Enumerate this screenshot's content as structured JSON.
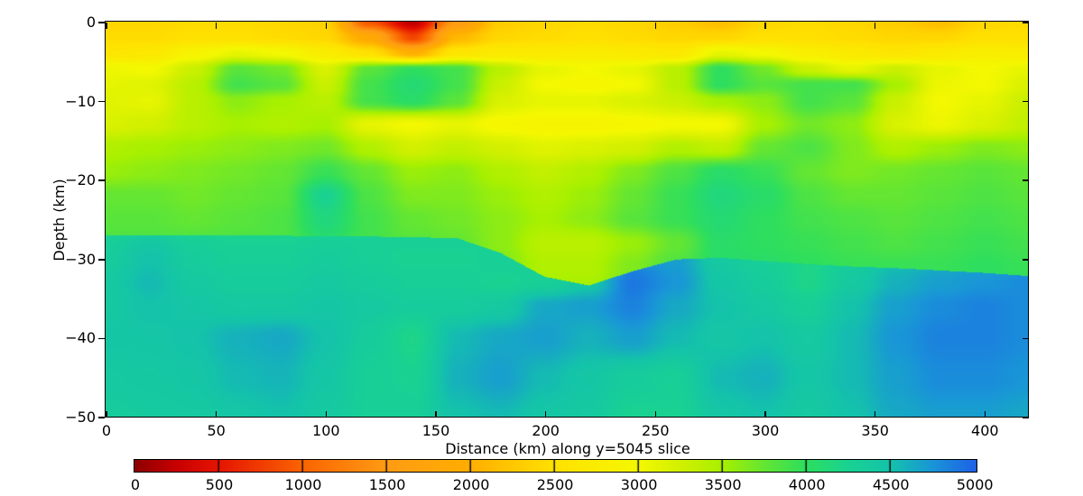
{
  "chart_data": {
    "type": "heatmap",
    "title": "",
    "xlabel": "Distance (km) along y=5045 slice",
    "ylabel": "Depth (km)",
    "x_range": [
      0,
      420
    ],
    "y_range": [
      -50,
      0
    ],
    "x_ticks": [
      0,
      50,
      100,
      150,
      200,
      250,
      300,
      350,
      400
    ],
    "y_ticks": [
      0,
      -10,
      -20,
      -30,
      -40,
      -50
    ],
    "grid_lines": "off",
    "colorbar": {
      "orientation": "horizontal",
      "min": 0,
      "max": 5015,
      "ticks": [
        0,
        500,
        1000,
        1500,
        2000,
        2500,
        3000,
        3500,
        4000,
        4500,
        5000
      ],
      "inner_tick_values": [
        500,
        1000,
        1500,
        2000,
        2500,
        3000,
        3500,
        4000,
        4500
      ],
      "colormap_stops": [
        [
          0,
          "#8c0000"
        ],
        [
          250,
          "#c80000"
        ],
        [
          500,
          "#e61400"
        ],
        [
          1000,
          "#fa6400"
        ],
        [
          1500,
          "#ff9b14"
        ],
        [
          2000,
          "#ffae00"
        ],
        [
          2500,
          "#ffe100"
        ],
        [
          3000,
          "#f4f800"
        ],
        [
          3250,
          "#d2f000"
        ],
        [
          3500,
          "#a8f000"
        ],
        [
          3750,
          "#64e632"
        ],
        [
          4000,
          "#2dde5f"
        ],
        [
          4250,
          "#19d292"
        ],
        [
          4500,
          "#14c3aa"
        ],
        [
          4750,
          "#1996d7"
        ],
        [
          5000,
          "#1e64e6"
        ],
        [
          5015,
          "#1e5ce6"
        ]
      ]
    },
    "field": {
      "x_km": [
        0,
        20,
        40,
        60,
        80,
        100,
        120,
        140,
        160,
        180,
        200,
        220,
        240,
        260,
        280,
        300,
        320,
        340,
        360,
        380,
        400,
        420
      ],
      "boundary_depth_km": [
        27.0,
        27.0,
        27.05,
        27.1,
        27.1,
        27.15,
        27.2,
        27.3,
        27.4,
        29.3,
        32.3,
        33.4,
        31.6,
        30.1,
        29.9,
        30.3,
        30.7,
        31.0,
        31.2,
        31.5,
        31.8,
        32.2
      ],
      "upper_depths_km": [
        0,
        2,
        4,
        6,
        8,
        10,
        13,
        16,
        19,
        22,
        25,
        28,
        31,
        34
      ],
      "upper_values": [
        [
          2400,
          2400,
          2450,
          2450,
          2400,
          2350,
          900,
          200,
          1500,
          2300,
          2400,
          2450,
          2400,
          2300,
          2150,
          2400,
          2450,
          2400,
          2300,
          2150,
          2400,
          2450
        ],
        [
          2450,
          2450,
          2500,
          2500,
          2450,
          2400,
          1900,
          800,
          2100,
          2400,
          2450,
          2500,
          2450,
          2400,
          2400,
          2500,
          2500,
          2450,
          2400,
          2400,
          2500,
          2500
        ],
        [
          2600,
          2650,
          2900,
          3100,
          3000,
          2750,
          2500,
          2000,
          2600,
          2700,
          2700,
          2750,
          2700,
          2650,
          3100,
          3000,
          2800,
          2700,
          2600,
          2700,
          2800,
          2750
        ],
        [
          3050,
          3000,
          3300,
          3800,
          3700,
          3200,
          3800,
          4000,
          3900,
          3400,
          3100,
          3000,
          3100,
          3400,
          4000,
          3700,
          3300,
          3100,
          3300,
          3100,
          3000,
          3100
        ],
        [
          3100,
          3150,
          3400,
          3900,
          3800,
          3300,
          3900,
          4100,
          3900,
          3300,
          3000,
          2950,
          3000,
          3400,
          4000,
          3800,
          3900,
          3900,
          3500,
          3050,
          3000,
          3200
        ],
        [
          3150,
          3100,
          3400,
          3600,
          3500,
          3400,
          3900,
          4050,
          3800,
          3200,
          3100,
          3100,
          3200,
          3300,
          3500,
          3600,
          3900,
          3800,
          3300,
          3000,
          3100,
          3300
        ],
        [
          3200,
          3250,
          3400,
          3500,
          3450,
          3500,
          3100,
          3000,
          3100,
          2950,
          2900,
          2900,
          2950,
          3000,
          3000,
          3500,
          3700,
          3600,
          3200,
          3050,
          3200,
          3350
        ],
        [
          3450,
          3500,
          3550,
          3600,
          3650,
          3700,
          3450,
          3250,
          3350,
          3250,
          3150,
          3200,
          3250,
          3450,
          3350,
          3750,
          3850,
          3650,
          3450,
          3550,
          3650,
          3600
        ],
        [
          3550,
          3600,
          3650,
          3700,
          3750,
          3950,
          3750,
          3550,
          3600,
          3450,
          3350,
          3450,
          3650,
          3850,
          4050,
          3950,
          3750,
          3650,
          3700,
          3750,
          3800,
          3750
        ],
        [
          3750,
          3750,
          3700,
          3750,
          3800,
          4250,
          3850,
          3650,
          3650,
          3550,
          3450,
          3550,
          3750,
          3950,
          4150,
          4050,
          3850,
          3750,
          3750,
          3800,
          3850,
          3800
        ],
        [
          3800,
          3800,
          3750,
          3800,
          3850,
          4150,
          3900,
          3750,
          3700,
          3600,
          3500,
          3600,
          3800,
          3950,
          4100,
          4000,
          3900,
          3850,
          3800,
          3850,
          3900,
          3850
        ],
        [
          3850,
          3850,
          3850,
          3850,
          3850,
          4050,
          3900,
          3800,
          3750,
          3600,
          3400,
          3400,
          3550,
          3750,
          4050,
          4000,
          3950,
          3900,
          3850,
          3900,
          3950,
          3900
        ],
        [
          3950,
          3950,
          3950,
          3950,
          3950,
          4050,
          3950,
          3850,
          3800,
          3650,
          3450,
          3450,
          3650,
          3850,
          4050,
          4050,
          4000,
          3950,
          3950,
          3950,
          4000,
          3950
        ],
        [
          4000,
          4000,
          4000,
          4000,
          4000,
          4100,
          4000,
          3900,
          3850,
          3700,
          3500,
          3500,
          3700,
          3900,
          4100,
          4100,
          4050,
          4000,
          4000,
          4000,
          4050,
          4000
        ]
      ],
      "lower_depths_km": [
        27,
        30,
        33,
        36,
        40,
        45,
        50
      ],
      "lower_values": [
        [
          4300,
          4400,
          4300,
          4250,
          4250,
          4300,
          4300,
          4300,
          4300,
          4250,
          4200,
          4200,
          4250,
          4300,
          4350,
          4300,
          4300,
          4300,
          4300,
          4300,
          4300,
          4300
        ],
        [
          4350,
          4500,
          4350,
          4300,
          4300,
          4350,
          4300,
          4250,
          4250,
          4300,
          4300,
          4400,
          4800,
          4700,
          4400,
          4300,
          4200,
          4350,
          4500,
          4600,
          4650,
          4750
        ],
        [
          4400,
          4550,
          4400,
          4350,
          4350,
          4400,
          4350,
          4300,
          4300,
          4250,
          4300,
          4450,
          4900,
          4750,
          4450,
          4350,
          4200,
          4400,
          4600,
          4700,
          4750,
          4800
        ],
        [
          4400,
          4500,
          4450,
          4400,
          4400,
          4450,
          4400,
          4350,
          4350,
          4400,
          4650,
          4700,
          4850,
          4650,
          4500,
          4400,
          4300,
          4500,
          4700,
          4800,
          4850,
          4800
        ],
        [
          4450,
          4450,
          4500,
          4600,
          4650,
          4500,
          4350,
          4200,
          4550,
          4650,
          4700,
          4600,
          4700,
          4550,
          4450,
          4500,
          4400,
          4550,
          4750,
          4850,
          4850,
          4800
        ],
        [
          4400,
          4420,
          4450,
          4550,
          4580,
          4450,
          4300,
          4250,
          4600,
          4700,
          4550,
          4450,
          4350,
          4300,
          4550,
          4600,
          4450,
          4550,
          4700,
          4800,
          4800,
          4750
        ],
        [
          4350,
          4380,
          4400,
          4450,
          4500,
          4400,
          4300,
          4300,
          4500,
          4550,
          4450,
          4400,
          4250,
          4250,
          4450,
          4500,
          4400,
          4500,
          4650,
          4700,
          4700,
          4650
        ]
      ]
    }
  }
}
